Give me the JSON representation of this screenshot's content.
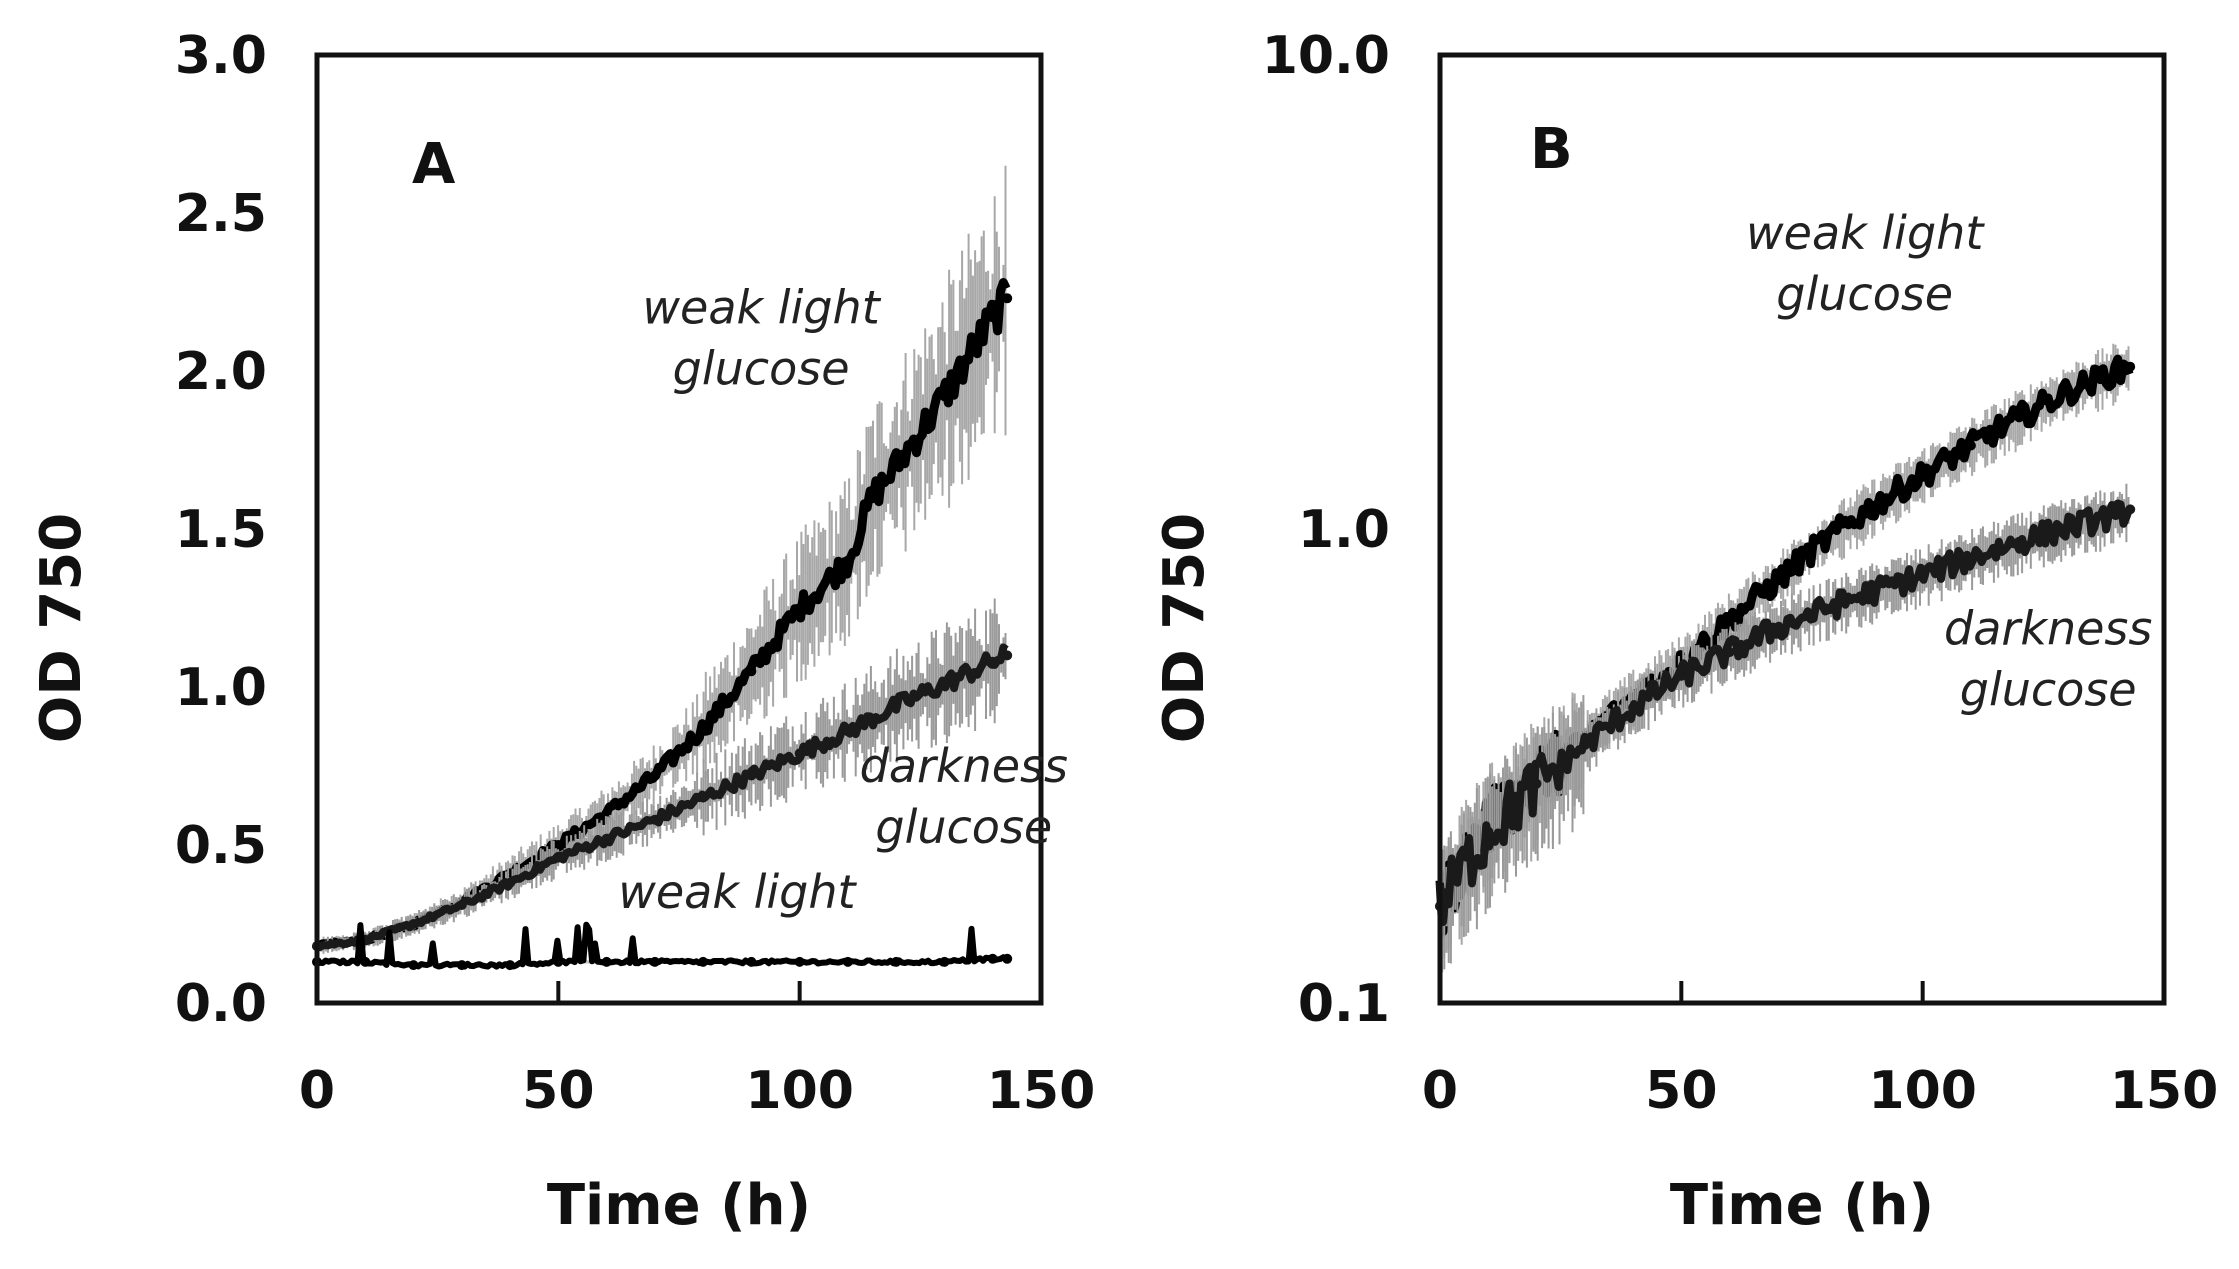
{
  "chart_data": [
    {
      "type": "line",
      "panel": "A",
      "scale": "linear",
      "xlabel": "Time (h)",
      "ylabel": "OD 750",
      "xlim": [
        0,
        150
      ],
      "ylim": [
        0.0,
        3.0
      ],
      "x_ticks": [
        {
          "value": 0,
          "label": "0"
        },
        {
          "value": 50,
          "label": "50"
        },
        {
          "value": 100,
          "label": "100"
        },
        {
          "value": 150,
          "label": "150"
        }
      ],
      "y_ticks": [
        {
          "value": 0.0,
          "label": "0.0"
        },
        {
          "value": 0.5,
          "label": "0.5"
        },
        {
          "value": 1.0,
          "label": "1.0"
        },
        {
          "value": 1.5,
          "label": "1.5"
        },
        {
          "value": 2.0,
          "label": "2.0"
        },
        {
          "value": 2.5,
          "label": "2.5"
        },
        {
          "value": 3.0,
          "label": "3.0"
        }
      ],
      "series": [
        {
          "name": "weak light glucose",
          "label_lines": [
            "weak light",
            "glucose"
          ],
          "label_anchor": {
            "x": 92,
            "y": 2.15
          },
          "x": [
            0,
            10,
            20,
            30,
            40,
            50,
            60,
            70,
            80,
            90,
            100,
            110,
            115,
            120,
            130,
            140,
            143
          ],
          "values": [
            0.18,
            0.2,
            0.25,
            0.32,
            0.41,
            0.5,
            0.6,
            0.72,
            0.87,
            1.05,
            1.25,
            1.4,
            1.6,
            1.7,
            1.92,
            2.17,
            2.23
          ]
        },
        {
          "name": "darkness glucose",
          "label_lines": [
            "darkness",
            "glucose"
          ],
          "label_anchor": {
            "x": 134,
            "y": 0.7
          },
          "x": [
            0,
            10,
            20,
            30,
            40,
            50,
            60,
            70,
            80,
            90,
            100,
            110,
            120,
            130,
            140,
            143
          ],
          "values": [
            0.18,
            0.2,
            0.25,
            0.31,
            0.38,
            0.46,
            0.52,
            0.58,
            0.65,
            0.72,
            0.79,
            0.86,
            0.94,
            1.01,
            1.08,
            1.1
          ]
        },
        {
          "name": "weak light",
          "label_lines": [
            "weak light"
          ],
          "label_anchor": {
            "x": 87,
            "y": 0.3
          },
          "x": [
            0,
            10,
            20,
            30,
            40,
            50,
            60,
            70,
            80,
            90,
            100,
            110,
            120,
            130,
            140,
            143
          ],
          "values": [
            0.13,
            0.13,
            0.12,
            0.12,
            0.12,
            0.13,
            0.13,
            0.13,
            0.13,
            0.13,
            0.13,
            0.13,
            0.13,
            0.13,
            0.14,
            0.14
          ]
        }
      ]
    },
    {
      "type": "line",
      "panel": "B",
      "scale": "log",
      "xlabel": "Time (h)",
      "ylabel": "OD 750",
      "xlim": [
        0,
        150
      ],
      "ylim": [
        0.1,
        10.0
      ],
      "x_ticks": [
        {
          "value": 0,
          "label": "0"
        },
        {
          "value": 50,
          "label": "50"
        },
        {
          "value": 100,
          "label": "100"
        },
        {
          "value": 150,
          "label": "150"
        }
      ],
      "y_ticks": [
        {
          "value": 0.1,
          "label": "0.1"
        },
        {
          "value": 1.0,
          "label": "1.0"
        },
        {
          "value": 10.0,
          "label": "10.0"
        }
      ],
      "series": [
        {
          "name": "weak light glucose",
          "label_lines": [
            "weak light",
            "glucose"
          ],
          "label_anchor": {
            "x": 88,
            "y": 3.9
          },
          "x": [
            0,
            10,
            20,
            30,
            40,
            50,
            60,
            70,
            80,
            90,
            100,
            110,
            120,
            130,
            140,
            143
          ],
          "values": [
            0.16,
            0.24,
            0.3,
            0.36,
            0.44,
            0.52,
            0.64,
            0.78,
            0.95,
            1.12,
            1.3,
            1.5,
            1.72,
            1.95,
            2.15,
            2.2
          ]
        },
        {
          "name": "darkness glucose",
          "label_lines": [
            "darkness",
            "glucose"
          ],
          "label_anchor": {
            "x": 126,
            "y": 0.57
          },
          "x": [
            0,
            10,
            20,
            30,
            40,
            50,
            60,
            70,
            80,
            90,
            100,
            110,
            120,
            130,
            140,
            143
          ],
          "values": [
            0.16,
            0.23,
            0.29,
            0.35,
            0.42,
            0.49,
            0.55,
            0.62,
            0.68,
            0.74,
            0.8,
            0.87,
            0.94,
            1.01,
            1.07,
            1.1
          ]
        }
      ]
    }
  ]
}
